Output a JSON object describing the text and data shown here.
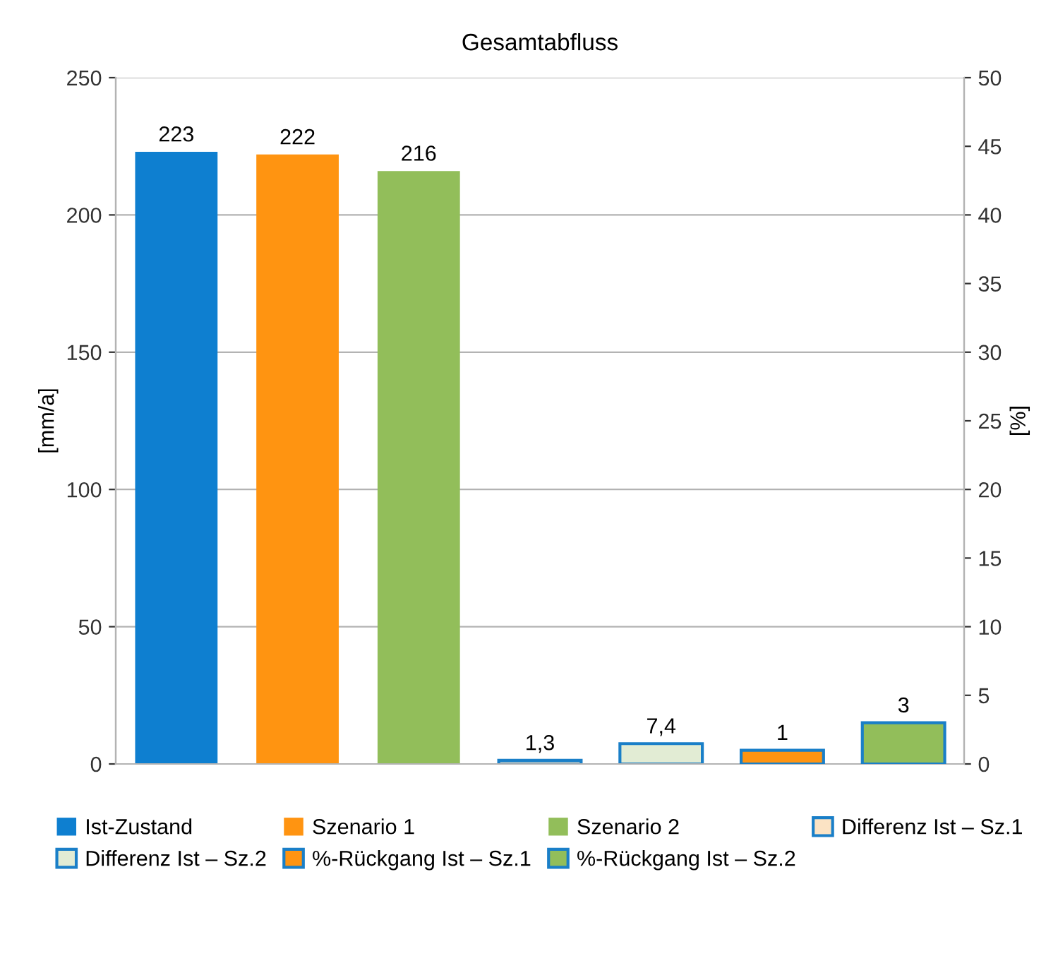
{
  "chart_data": {
    "type": "bar",
    "title": "Gesamtabfluss",
    "ylabel": "[mm/a]",
    "y2label": "[%]",
    "categories": [
      null,
      null,
      null,
      null,
      null,
      null,
      null
    ],
    "series": [
      {
        "name": "Ist-Zustand",
        "color": "#0e7fd0",
        "values": [
          223,
          null,
          null,
          null,
          null,
          null,
          null
        ],
        "value_labels": [
          "223",
          null,
          null,
          null,
          null,
          null,
          null
        ]
      },
      {
        "name": "Szenario 1",
        "color": "#ff9411",
        "values": [
          null,
          222,
          null,
          null,
          null,
          null,
          null
        ],
        "value_labels": [
          null,
          "222",
          null,
          null,
          null,
          null,
          null
        ]
      },
      {
        "name": "Szenario 2",
        "color": "#92be5a",
        "values": [
          null,
          null,
          216,
          null,
          null,
          null,
          null
        ],
        "value_labels": [
          null,
          null,
          "216",
          null,
          null,
          null,
          null
        ]
      },
      {
        "name": "Differenz Ist – Sz.1",
        "color": "#fbe3c4",
        "values": [
          null,
          null,
          null,
          1.3,
          null,
          null,
          null
        ],
        "value_labels": [
          null,
          null,
          null,
          "1,3",
          null,
          null,
          null
        ]
      },
      {
        "name": "Differenz Ist – Sz.2",
        "color": "#e2ecd4",
        "values": [
          null,
          null,
          null,
          null,
          7.4,
          null,
          null
        ],
        "value_labels": [
          null,
          null,
          null,
          null,
          "7,4",
          null,
          null
        ]
      },
      {
        "name": "%-Rückgang Ist – Sz.1",
        "color": "#ff9411",
        "axis": "y2",
        "values": [
          null,
          null,
          null,
          null,
          null,
          1,
          null
        ],
        "value_labels": [
          null,
          null,
          null,
          null,
          null,
          "1",
          null
        ]
      },
      {
        "name": "%-Rückgang Ist – Sz.2",
        "color": "#92be5a",
        "axis": "y2",
        "values": [
          null,
          null,
          null,
          null,
          null,
          null,
          3
        ],
        "value_labels": [
          null,
          null,
          null,
          null,
          null,
          null,
          "3"
        ]
      }
    ],
    "ylim": [
      0,
      250
    ],
    "yticks": [
      0,
      50,
      100,
      150,
      200,
      250
    ],
    "y2lim": [
      0,
      50
    ],
    "y2ticks": [
      0,
      5,
      10,
      15,
      20,
      25,
      30,
      35,
      40,
      45,
      50
    ],
    "grid": "y",
    "legend": "bottom"
  }
}
